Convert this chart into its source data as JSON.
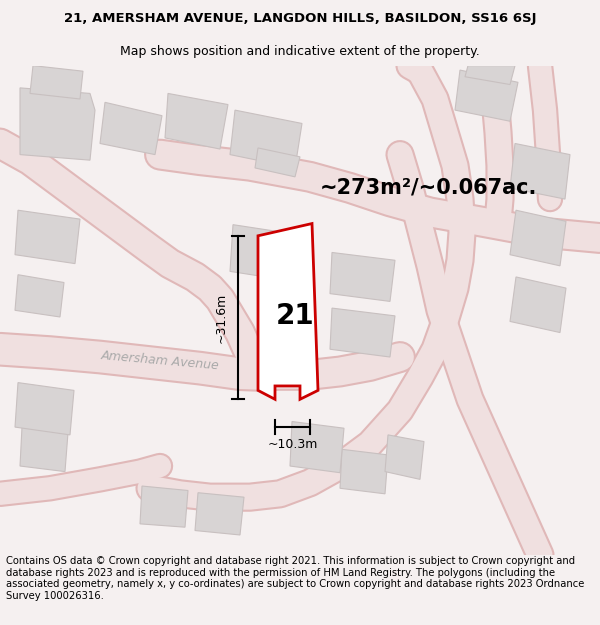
{
  "title_line1": "21, AMERSHAM AVENUE, LANGDON HILLS, BASILDON, SS16 6SJ",
  "title_line2": "Map shows position and indicative extent of the property.",
  "area_text": "~273m²/~0.067ac.",
  "label_21": "21",
  "dim_vertical": "~31.6m",
  "dim_horizontal": "~10.3m",
  "street_label": "Amersham Avenue",
  "footer_text": "Contains OS data © Crown copyright and database right 2021. This information is subject to Crown copyright and database rights 2023 and is reproduced with the permission of HM Land Registry. The polygons (including the associated geometry, namely x, y co-ordinates) are subject to Crown copyright and database rights 2023 Ordnance Survey 100026316.",
  "bg_color": "#f5f0f0",
  "map_bg": "#ffffff",
  "plot_outline_color": "#cc0000",
  "building_fill": "#d8d4d4",
  "road_fill": "#f0e0e0",
  "road_edge": "#e0b8b8",
  "title_fontsize": 9.5,
  "subtitle_fontsize": 9,
  "area_fontsize": 15,
  "label_fontsize": 20,
  "dim_fontsize": 9,
  "street_fontsize": 9,
  "footer_fontsize": 7.2
}
